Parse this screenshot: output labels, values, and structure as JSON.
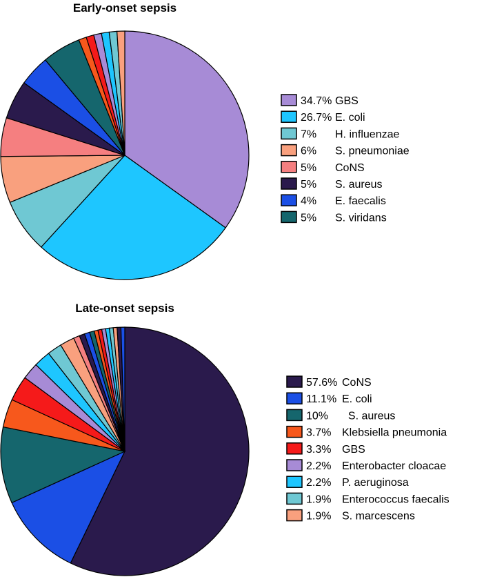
{
  "chart_data": [
    {
      "type": "pie",
      "title": "Early-onset sepsis",
      "slices": [
        {
          "label": "GBS",
          "value": 34.7,
          "color": "#A78BD6"
        },
        {
          "label": "E. coli",
          "value": 26.7,
          "color": "#1EC6FF"
        },
        {
          "label": "H. influenzae",
          "value": 7.0,
          "color": "#6FC8D3"
        },
        {
          "label": "S. pneumoniae",
          "value": 6.0,
          "color": "#F9A07E"
        },
        {
          "label": "CoNS",
          "value": 5.0,
          "color": "#F57F80"
        },
        {
          "label": "S. aureus",
          "value": 5.0,
          "color": "#2A1A4C"
        },
        {
          "label": "E. faecalis",
          "value": 4.0,
          "color": "#1B4FE5"
        },
        {
          "label": "S. viridans",
          "value": 5.0,
          "color": "#15666D"
        },
        {
          "label": "",
          "value": 1.0,
          "color": "#F7581C"
        },
        {
          "label": "",
          "value": 1.0,
          "color": "#F51A1A"
        },
        {
          "label": "",
          "value": 1.0,
          "color": "#A78BD6"
        },
        {
          "label": "",
          "value": 1.0,
          "color": "#1EC6FF"
        },
        {
          "label": "",
          "value": 1.0,
          "color": "#6FC8D3"
        },
        {
          "label": "",
          "value": 1.0,
          "color": "#F9A07E"
        }
      ],
      "legend": [
        {
          "pct": "34.7%",
          "name": "GBS",
          "color": "#A78BD6"
        },
        {
          "pct": "26.7%",
          "name": "E. coli",
          "color": "#1EC6FF"
        },
        {
          "pct": "7%",
          "name": "H. influenzae",
          "color": "#6FC8D3"
        },
        {
          "pct": "6%",
          "name": "S. pneumoniae",
          "color": "#F9A07E"
        },
        {
          "pct": "5%",
          "name": "CoNS",
          "color": "#F57F80"
        },
        {
          "pct": "5%",
          "name": "S. aureus",
          "color": "#2A1A4C"
        },
        {
          "pct": "4%",
          "name": "E. faecalis",
          "color": "#1B4FE5"
        },
        {
          "pct": "5%",
          "name": "S. viridans",
          "color": "#15666D"
        }
      ]
    },
    {
      "type": "pie",
      "title": "Late-onset sepsis",
      "slices": [
        {
          "label": "CoNS",
          "value": 57.6,
          "color": "#2A1A4C"
        },
        {
          "label": "E. coli",
          "value": 11.1,
          "color": "#1B4FE5"
        },
        {
          "label": "S. aureus",
          "value": 10.0,
          "color": "#15666D"
        },
        {
          "label": "Klebsiella pneumonia",
          "value": 3.7,
          "color": "#F7581C"
        },
        {
          "label": "GBS",
          "value": 3.3,
          "color": "#F51A1A"
        },
        {
          "label": "Enterobacter cloacae",
          "value": 2.2,
          "color": "#A78BD6"
        },
        {
          "label": "P. aeruginosa",
          "value": 2.2,
          "color": "#1EC6FF"
        },
        {
          "label": "Enterococcus faecalis",
          "value": 1.9,
          "color": "#6FC8D3"
        },
        {
          "label": "S. marcescens",
          "value": 1.9,
          "color": "#F9A07E"
        },
        {
          "label": "",
          "value": 0.8,
          "color": "#F57F80"
        },
        {
          "label": "",
          "value": 0.7,
          "color": "#2A1A4C"
        },
        {
          "label": "",
          "value": 0.7,
          "color": "#1B4FE5"
        },
        {
          "label": "",
          "value": 0.6,
          "color": "#15666D"
        },
        {
          "label": "",
          "value": 0.5,
          "color": "#F7581C"
        },
        {
          "label": "",
          "value": 0.5,
          "color": "#F51A1A"
        },
        {
          "label": "",
          "value": 0.5,
          "color": "#A78BD6"
        },
        {
          "label": "",
          "value": 0.5,
          "color": "#1EC6FF"
        },
        {
          "label": "",
          "value": 0.5,
          "color": "#6FC8D3"
        },
        {
          "label": "",
          "value": 0.5,
          "color": "#F9A07E"
        },
        {
          "label": "",
          "value": 0.5,
          "color": "#2A1A4C"
        },
        {
          "label": "",
          "value": 0.5,
          "color": "#1B4FE5"
        }
      ],
      "legend": [
        {
          "pct": "57.6%",
          "name": "CoNS",
          "color": "#2A1A4C"
        },
        {
          "pct": "11.1%",
          "name": "E. coli",
          "color": "#1B4FE5"
        },
        {
          "pct": "10%",
          "name": "  S. aureus",
          "color": "#15666D"
        },
        {
          "pct": "3.7%",
          "name": "Klebsiella pneumonia",
          "color": "#F7581C"
        },
        {
          "pct": "3.3%",
          "name": "GBS",
          "color": "#F51A1A"
        },
        {
          "pct": "2.2%",
          "name": "Enterobacter cloacae",
          "color": "#A78BD6"
        },
        {
          "pct": "2.2%",
          "name": "P. aeruginosa",
          "color": "#1EC6FF"
        },
        {
          "pct": "1.9%",
          "name": "Enterococcus faecalis",
          "color": "#6FC8D3"
        },
        {
          "pct": "1.9%",
          "name": "S. marcescens",
          "color": "#F9A07E"
        }
      ]
    }
  ]
}
